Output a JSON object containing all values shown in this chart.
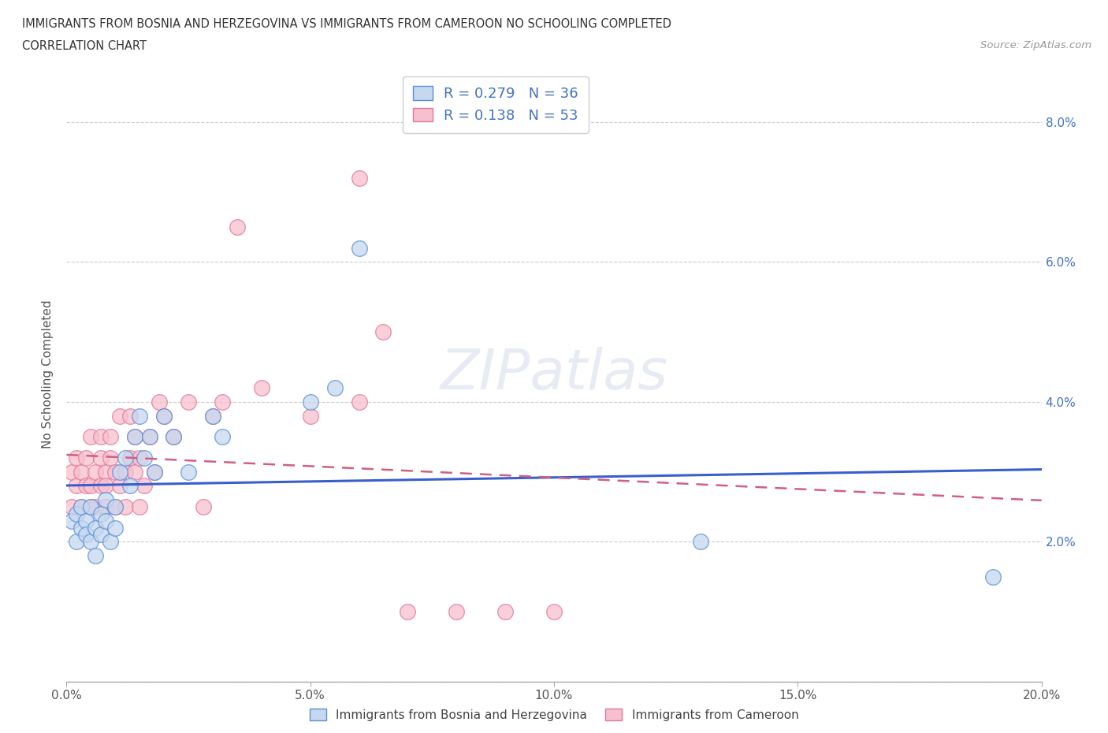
{
  "title_line1": "IMMIGRANTS FROM BOSNIA AND HERZEGOVINA VS IMMIGRANTS FROM CAMEROON NO SCHOOLING COMPLETED",
  "title_line2": "CORRELATION CHART",
  "source": "Source: ZipAtlas.com",
  "ylabel": "No Schooling Completed",
  "xlim": [
    0.0,
    0.2
  ],
  "ylim": [
    0.0,
    0.088
  ],
  "xticks": [
    0.0,
    0.05,
    0.1,
    0.15,
    0.2
  ],
  "xtick_labels": [
    "0.0%",
    "5.0%",
    "10.0%",
    "15.0%",
    "20.0%"
  ],
  "yticks": [
    0.0,
    0.02,
    0.04,
    0.06,
    0.08
  ],
  "ytick_labels_right": [
    "",
    "2.0%",
    "4.0%",
    "6.0%",
    "8.0%"
  ],
  "blue_fill": "#c5d8f0",
  "blue_edge": "#5b8ed6",
  "pink_fill": "#f7c0ce",
  "pink_edge": "#e07898",
  "blue_line": "#3a5fcd",
  "pink_line": "#d06080",
  "legend_color": "#4472c4",
  "blue_R": "0.279",
  "blue_N": "36",
  "pink_R": "0.138",
  "pink_N": "53",
  "blue_x": [
    0.001,
    0.002,
    0.002,
    0.003,
    0.003,
    0.004,
    0.004,
    0.005,
    0.005,
    0.006,
    0.006,
    0.007,
    0.007,
    0.008,
    0.008,
    0.009,
    0.01,
    0.01,
    0.011,
    0.012,
    0.013,
    0.014,
    0.015,
    0.016,
    0.017,
    0.018,
    0.02,
    0.022,
    0.025,
    0.03,
    0.032,
    0.05,
    0.055,
    0.06,
    0.13,
    0.19
  ],
  "blue_y": [
    0.023,
    0.02,
    0.024,
    0.022,
    0.025,
    0.023,
    0.021,
    0.02,
    0.025,
    0.022,
    0.018,
    0.024,
    0.021,
    0.026,
    0.023,
    0.02,
    0.025,
    0.022,
    0.03,
    0.032,
    0.028,
    0.035,
    0.038,
    0.032,
    0.035,
    0.03,
    0.038,
    0.035,
    0.03,
    0.038,
    0.035,
    0.04,
    0.042,
    0.062,
    0.02,
    0.015
  ],
  "pink_x": [
    0.001,
    0.001,
    0.002,
    0.002,
    0.003,
    0.003,
    0.004,
    0.004,
    0.005,
    0.005,
    0.005,
    0.006,
    0.006,
    0.007,
    0.007,
    0.007,
    0.008,
    0.008,
    0.008,
    0.009,
    0.009,
    0.01,
    0.01,
    0.011,
    0.011,
    0.012,
    0.012,
    0.013,
    0.013,
    0.014,
    0.014,
    0.015,
    0.015,
    0.016,
    0.017,
    0.018,
    0.019,
    0.02,
    0.022,
    0.025,
    0.028,
    0.03,
    0.032,
    0.035,
    0.04,
    0.05,
    0.06,
    0.06,
    0.065,
    0.07,
    0.08,
    0.09,
    0.1
  ],
  "pink_y": [
    0.025,
    0.03,
    0.028,
    0.032,
    0.025,
    0.03,
    0.028,
    0.032,
    0.025,
    0.028,
    0.035,
    0.03,
    0.025,
    0.032,
    0.028,
    0.035,
    0.025,
    0.03,
    0.028,
    0.032,
    0.035,
    0.03,
    0.025,
    0.038,
    0.028,
    0.03,
    0.025,
    0.032,
    0.038,
    0.03,
    0.035,
    0.025,
    0.032,
    0.028,
    0.035,
    0.03,
    0.04,
    0.038,
    0.035,
    0.04,
    0.025,
    0.038,
    0.04,
    0.065,
    0.042,
    0.038,
    0.04,
    0.072,
    0.05,
    0.01,
    0.01,
    0.01,
    0.01
  ]
}
